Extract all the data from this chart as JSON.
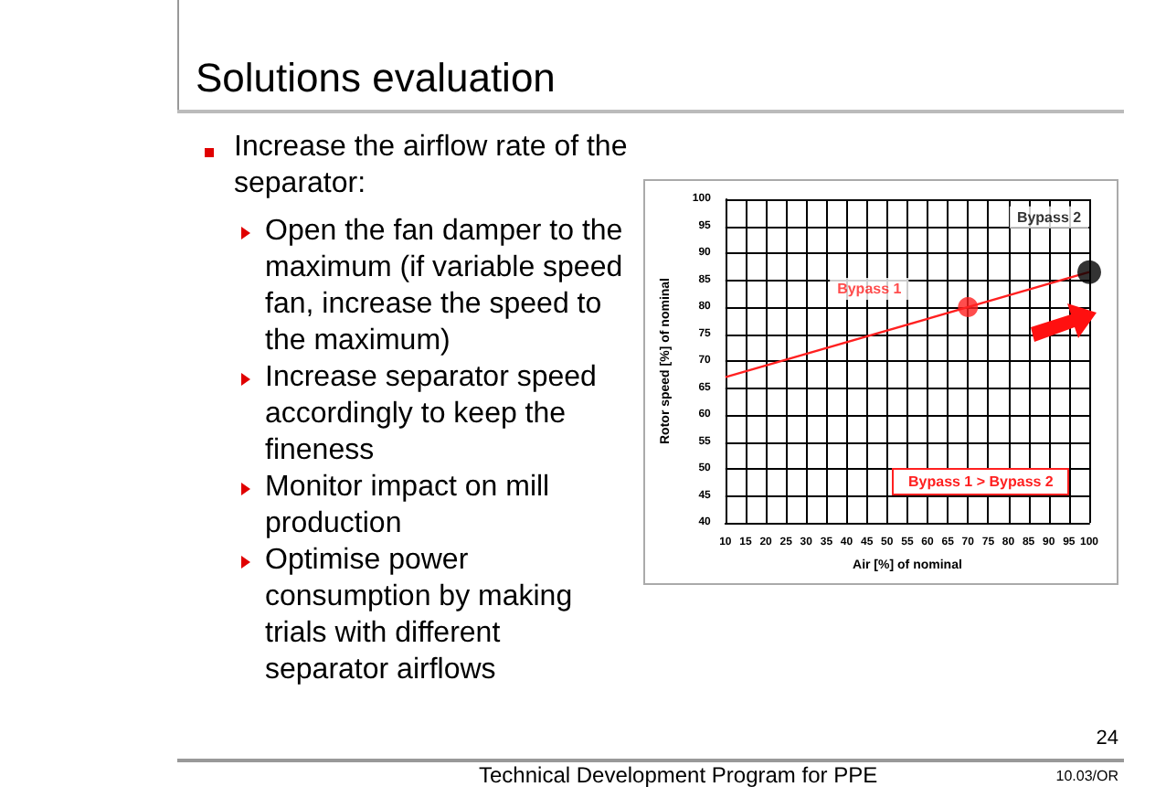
{
  "chart_data": {
    "type": "line",
    "title": "Solutions evaluation",
    "xlabel": "Air [%] of nominal",
    "ylabel": "Rotor speed [%] of nominal",
    "xlim": [
      10,
      100
    ],
    "xticks": [
      10,
      15,
      20,
      25,
      30,
      35,
      40,
      45,
      50,
      55,
      60,
      65,
      70,
      75,
      80,
      85,
      90,
      95,
      100
    ],
    "ylim": [
      40,
      100
    ],
    "yticks": [
      40,
      45,
      50,
      55,
      60,
      65,
      70,
      75,
      80,
      85,
      90,
      95,
      100
    ],
    "grid": true,
    "legend": false,
    "series": [
      {
        "color": "#ff2020",
        "marker": "none",
        "x": [
          10,
          100
        ],
        "values": [
          67,
          86.5
        ]
      },
      {
        "type": "scatter",
        "marker": "circle",
        "name": "Bypass 1",
        "color": "#ff2020",
        "x": [
          70
        ],
        "values": [
          80
        ]
      },
      {
        "type": "scatter",
        "marker": "circle",
        "name": "Bypass 2",
        "color": "#000000",
        "x": [
          100
        ],
        "values": [
          86.5
        ]
      }
    ],
    "annotations": [
      "Increase the airflow rate of the separator:",
      "Open the fan damper to the maximum (if variable speed fan, increase the speed to the maximum)",
      "Increase separator speed accordingly to keep the fineness",
      "Monitor impact on mill production",
      "Optimise power consumption by making trials with different separator airflows",
      "Bypass 1 > Bypass 2",
      "24",
      "Technical Development Program for PPE",
      "10.03/OR"
    ]
  }
}
